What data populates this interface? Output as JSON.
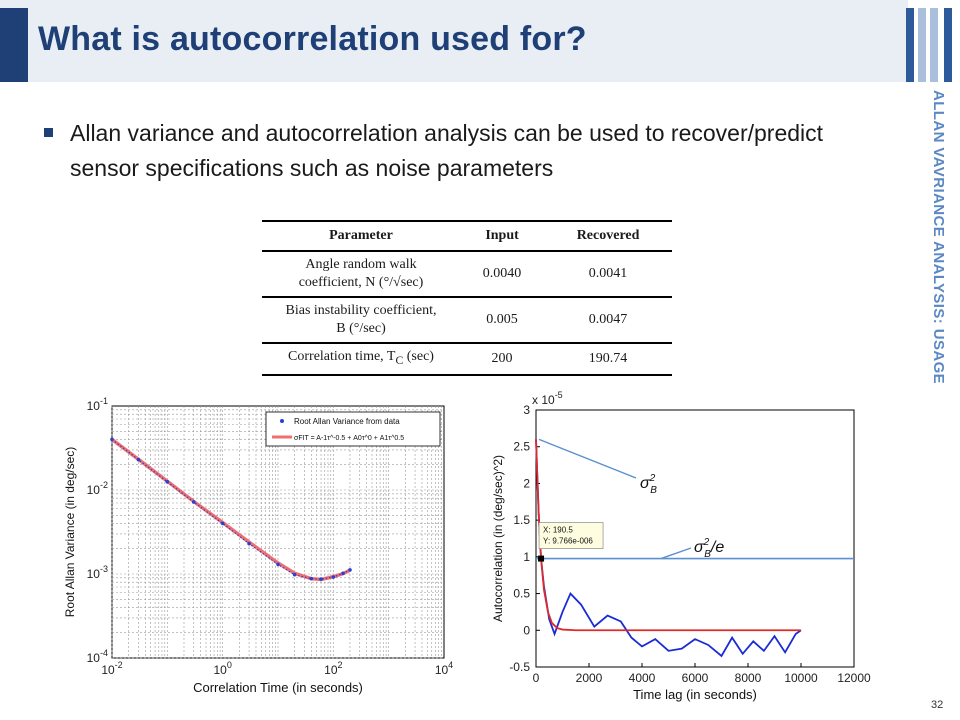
{
  "slide": {
    "title": "What is autocorrelation used for?",
    "side_label": "ALLAN VAVRIANCE ANALYSIS: USAGE",
    "bullet": "Allan variance and autocorrelation analysis can be used to recover/predict sensor specifications such as noise parameters",
    "page_number": "32",
    "colors": {
      "title": "#1f3f77",
      "band": "#e9edf4",
      "side": "#5b88c4"
    }
  },
  "table": {
    "headers": [
      "Parameter",
      "Input",
      "Recovered"
    ],
    "rows": [
      {
        "param_line1": "Angle random walk",
        "param_line2": "coefficient, N (°/√sec)",
        "input": "0.0040",
        "recovered": "0.0041"
      },
      {
        "param_line1": "Bias instability coefficient,",
        "param_line2": "B (°/sec)",
        "input": "0.005",
        "recovered": "0.0047"
      },
      {
        "param_line1": "Correlation time, T",
        "param_line1_sub": "C",
        "param_line1_tail": " (sec)",
        "input": "200",
        "recovered": "190.74"
      }
    ]
  },
  "chart_data": [
    {
      "type": "line",
      "xscale": "log",
      "yscale": "log",
      "xlabel": "Correlation Time (in seconds)",
      "ylabel": "Root Allan Variance (in deg/sec)",
      "xlim": [
        0.01,
        10000
      ],
      "ylim": [
        0.0001,
        0.1
      ],
      "x_ticks": [
        "10^-2",
        "10^0",
        "10^2",
        "10^4"
      ],
      "y_ticks": [
        "10^-4",
        "10^-3",
        "10^-2",
        "10^-1"
      ],
      "grid": true,
      "legend": {
        "placement": "top-right",
        "entries": [
          "Root Allan Variance from data",
          "σFIT = A-1τ^-0.5 + A0τ^0 + A1τ^0.5"
        ]
      },
      "series": [
        {
          "name": "Root Allan Variance from data",
          "color": "#2b3fd6",
          "x": [
            0.01,
            0.03,
            0.1,
            0.3,
            1,
            3,
            10,
            20,
            40,
            60,
            100,
            150,
            200
          ],
          "y": [
            0.04,
            0.023,
            0.0125,
            0.0072,
            0.004,
            0.0023,
            0.0013,
            0.00098,
            0.00088,
            0.00087,
            0.00092,
            0.00102,
            0.00112
          ]
        },
        {
          "name": "σFIT = A-1τ^-0.5 + A0τ^0 + A1τ^0.5",
          "color": "#f06f6f",
          "x": [
            0.01,
            0.03,
            0.1,
            0.3,
            1,
            3,
            10,
            20,
            40,
            60,
            100,
            150,
            200
          ],
          "y": [
            0.04,
            0.0232,
            0.0127,
            0.0073,
            0.0041,
            0.0024,
            0.00135,
            0.00102,
            0.00088,
            0.00086,
            0.00093,
            0.00101,
            0.00111
          ]
        }
      ]
    },
    {
      "type": "line",
      "xlabel": "Time lag (in seconds)",
      "ylabel": "Autocorrelation (in (deg/sec)^2)",
      "y_multiplier": "x 10^-5",
      "xlim": [
        0,
        12000
      ],
      "ylim": [
        -0.5,
        3
      ],
      "x_ticks": [
        0,
        2000,
        4000,
        6000,
        8000,
        10000,
        12000
      ],
      "y_ticks": [
        -0.5,
        0,
        0.5,
        1,
        1.5,
        2,
        2.5,
        3
      ],
      "grid": false,
      "series": [
        {
          "name": "",
          "color": "#1a2bd6",
          "x": [
            0,
            100,
            190.5,
            300,
            500,
            700,
            1000,
            1300,
            1700,
            2200,
            2700,
            3200,
            3600,
            4000,
            4500,
            5000,
            5500,
            6000,
            6500,
            7000,
            7400,
            7800,
            8200,
            8600,
            9000,
            9400,
            9800,
            10000
          ],
          "y": [
            2.6,
            1.6,
            0.9766,
            0.6,
            0.15,
            -0.05,
            0.25,
            0.5,
            0.35,
            0.05,
            0.2,
            0.12,
            -0.1,
            -0.22,
            -0.12,
            -0.28,
            -0.25,
            -0.12,
            -0.2,
            -0.35,
            -0.1,
            -0.32,
            -0.15,
            -0.28,
            -0.08,
            -0.3,
            -0.05,
            0
          ]
        },
        {
          "name": "",
          "color": "#e02a2a",
          "x": [
            0,
            100,
            190.5,
            300,
            450,
            600,
            800,
            1000,
            1500,
            2000,
            4000,
            6000,
            8000,
            10000
          ],
          "y": [
            2.6,
            1.6,
            0.9766,
            0.55,
            0.25,
            0.1,
            0.03,
            0.01,
            0,
            0,
            0,
            0,
            0,
            0
          ]
        },
        {
          "name": "",
          "color": "#5a8fd0",
          "x": [
            0,
            12000
          ],
          "y": [
            0.9766,
            0.9766
          ]
        }
      ],
      "annotations": [
        {
          "text": "σB²",
          "target": [
            0,
            2.6
          ]
        },
        {
          "text": "σB²/e",
          "target": [
            190.5,
            0.9766
          ]
        }
      ],
      "datatip": {
        "x_label": "X: 190.5",
        "y_label": "Y: 9.766e-006"
      }
    }
  ]
}
